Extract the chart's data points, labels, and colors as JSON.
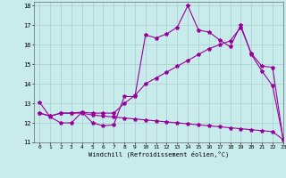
{
  "xlabel": "Windchill (Refroidissement éolien,°C)",
  "bg_color": "#c8ecec",
  "line_color": "#990099",
  "grid_color": "#aacccc",
  "xlim": [
    -0.5,
    23
  ],
  "ylim": [
    11,
    18.2
  ],
  "xticks": [
    0,
    1,
    2,
    3,
    4,
    5,
    6,
    7,
    8,
    9,
    10,
    11,
    12,
    13,
    14,
    15,
    16,
    17,
    18,
    19,
    20,
    21,
    22,
    23
  ],
  "yticks": [
    11,
    12,
    13,
    14,
    15,
    16,
    17,
    18
  ],
  "line1_x": [
    0,
    1,
    2,
    3,
    4,
    5,
    6,
    7,
    8,
    9,
    10,
    11,
    12,
    13,
    14,
    15,
    16,
    17,
    18,
    19,
    20,
    21,
    22,
    23
  ],
  "line1_y": [
    13.05,
    12.3,
    12.0,
    12.0,
    12.55,
    12.0,
    11.85,
    11.9,
    13.35,
    13.35,
    16.5,
    16.35,
    16.55,
    16.9,
    18.0,
    16.75,
    16.65,
    16.25,
    15.9,
    17.0,
    15.5,
    14.65,
    13.9,
    11.2
  ],
  "line2_x": [
    0,
    1,
    2,
    3,
    4,
    5,
    6,
    7,
    8,
    9,
    10,
    11,
    12,
    13,
    14,
    15,
    16,
    17,
    18,
    19,
    20,
    21,
    22,
    23
  ],
  "line2_y": [
    12.5,
    12.35,
    12.5,
    12.5,
    12.55,
    12.5,
    12.5,
    12.5,
    13.0,
    13.4,
    14.0,
    14.3,
    14.6,
    14.9,
    15.2,
    15.5,
    15.8,
    16.0,
    16.2,
    16.9,
    15.55,
    14.9,
    14.85,
    11.15
  ],
  "line3_x": [
    0,
    1,
    2,
    3,
    4,
    5,
    6,
    7,
    8,
    9,
    10,
    11,
    12,
    13,
    14,
    15,
    16,
    17,
    18,
    19,
    20,
    21,
    22,
    23
  ],
  "line3_y": [
    12.5,
    12.35,
    12.5,
    12.5,
    12.5,
    12.4,
    12.35,
    12.3,
    12.25,
    12.2,
    12.15,
    12.1,
    12.05,
    12.0,
    11.95,
    11.9,
    11.85,
    11.8,
    11.75,
    11.7,
    11.65,
    11.6,
    11.55,
    11.15
  ],
  "marker": "*",
  "markersize": 3,
  "linewidth": 0.8
}
